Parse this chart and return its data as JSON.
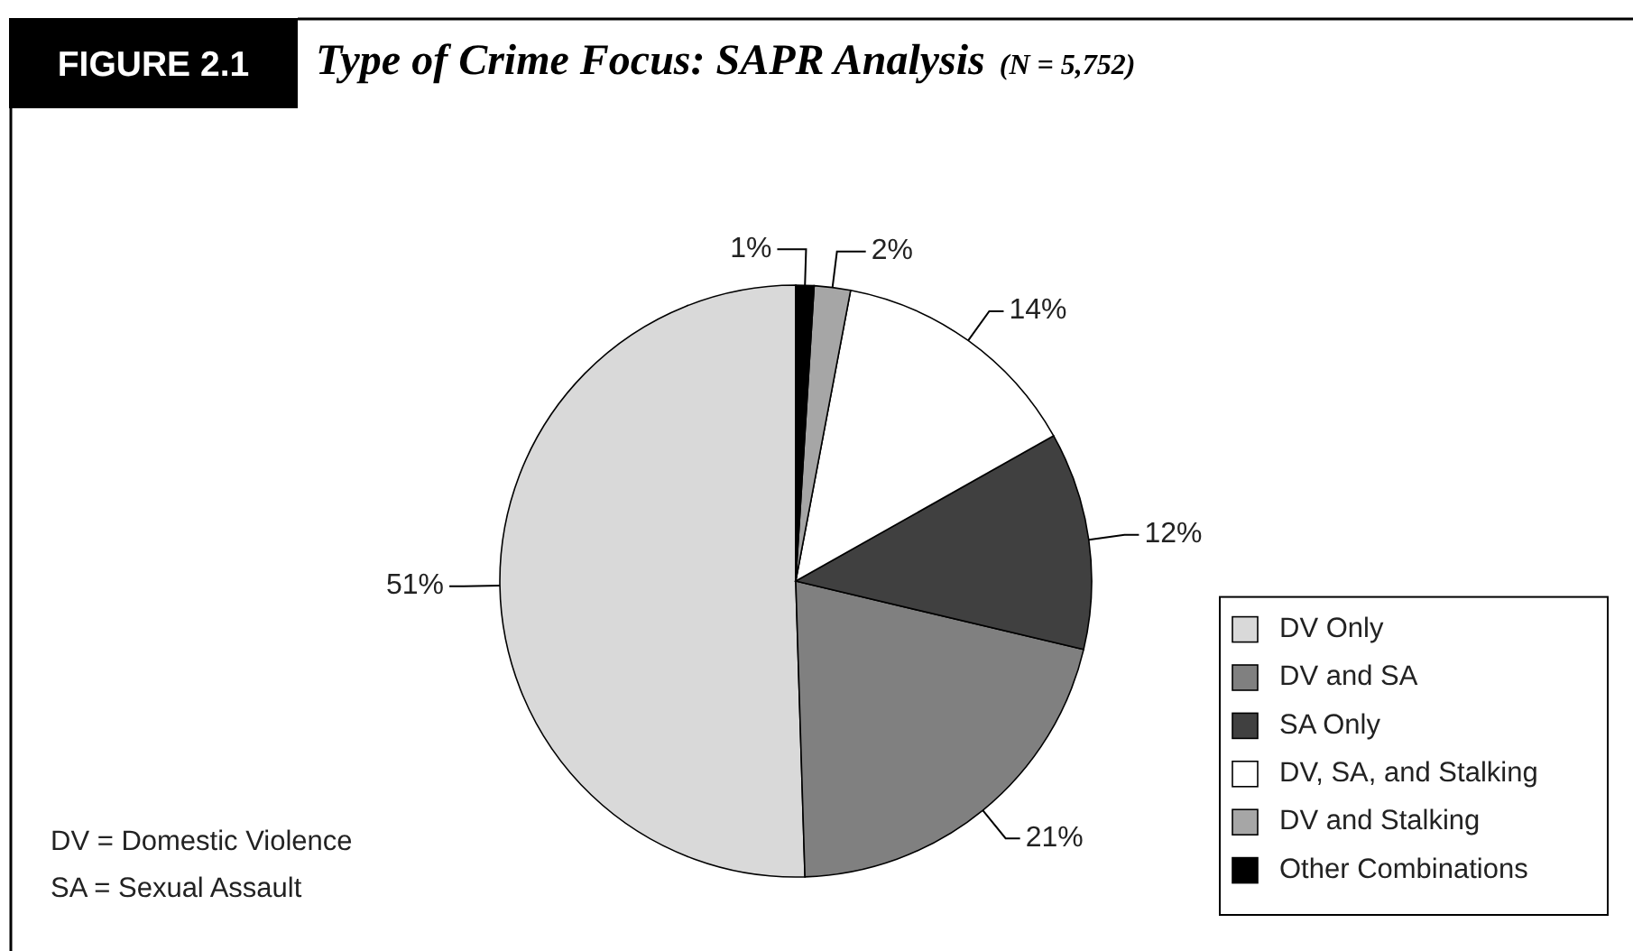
{
  "chart_data": {
    "type": "pie",
    "title": "Type of Crime Focus: SAPR Analysis",
    "subtitle": "(N = 5,752)",
    "categories": [
      "DV Only",
      "DV and SA",
      "SA Only",
      "DV, SA, and Stalking",
      "DV and Stalking",
      "Other Combinations"
    ],
    "values": [
      51,
      21,
      12,
      14,
      2,
      1
    ],
    "colors": [
      "#d9d9d9",
      "#808080",
      "#404040",
      "#ffffff",
      "#a6a6a6",
      "#000000"
    ],
    "value_labels": [
      "51%",
      "21%",
      "12%",
      "14%",
      "2%",
      "1%"
    ],
    "legend": "bottom right",
    "annotations": [
      "FIGURE 2.1",
      "DV = Domestic Violence",
      "SA = Sexual Assault"
    ]
  }
}
